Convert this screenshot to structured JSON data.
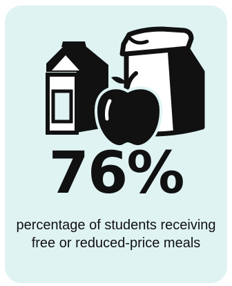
{
  "stat": {
    "value": "76%",
    "caption": "percentage of students receiving free or reduced-price meals"
  },
  "icons": [
    "milk-carton-icon",
    "apple-icon",
    "paper-lunch-bag-icon"
  ],
  "colors": {
    "card_background": "#dff3f3",
    "ink": "#111111",
    "page_background": "#ffffff"
  }
}
